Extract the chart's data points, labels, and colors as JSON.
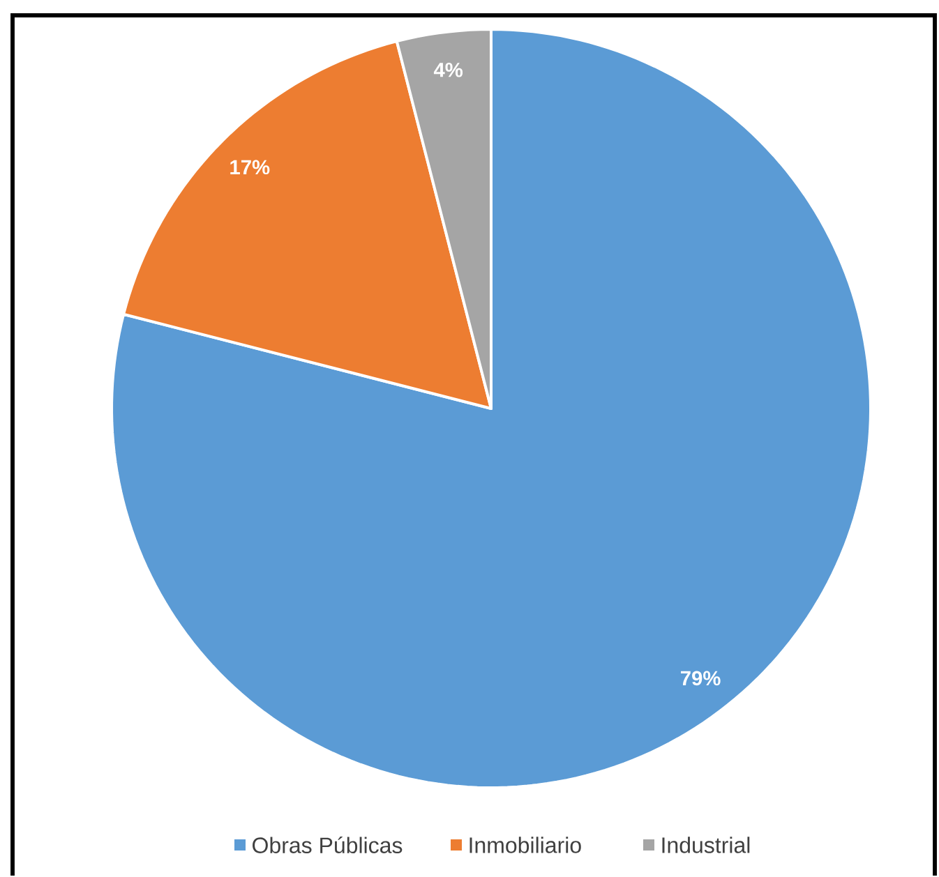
{
  "chart_data": {
    "type": "pie",
    "categories": [
      "Obras Públicas",
      "Inmobiliario",
      "Industrial"
    ],
    "values": [
      79,
      17,
      4
    ],
    "colors": [
      "#5b9bd5",
      "#ed7d31",
      "#a5a5a5"
    ],
    "value_labels": [
      "79%",
      "17%",
      "4%"
    ],
    "legend": "bottom"
  }
}
